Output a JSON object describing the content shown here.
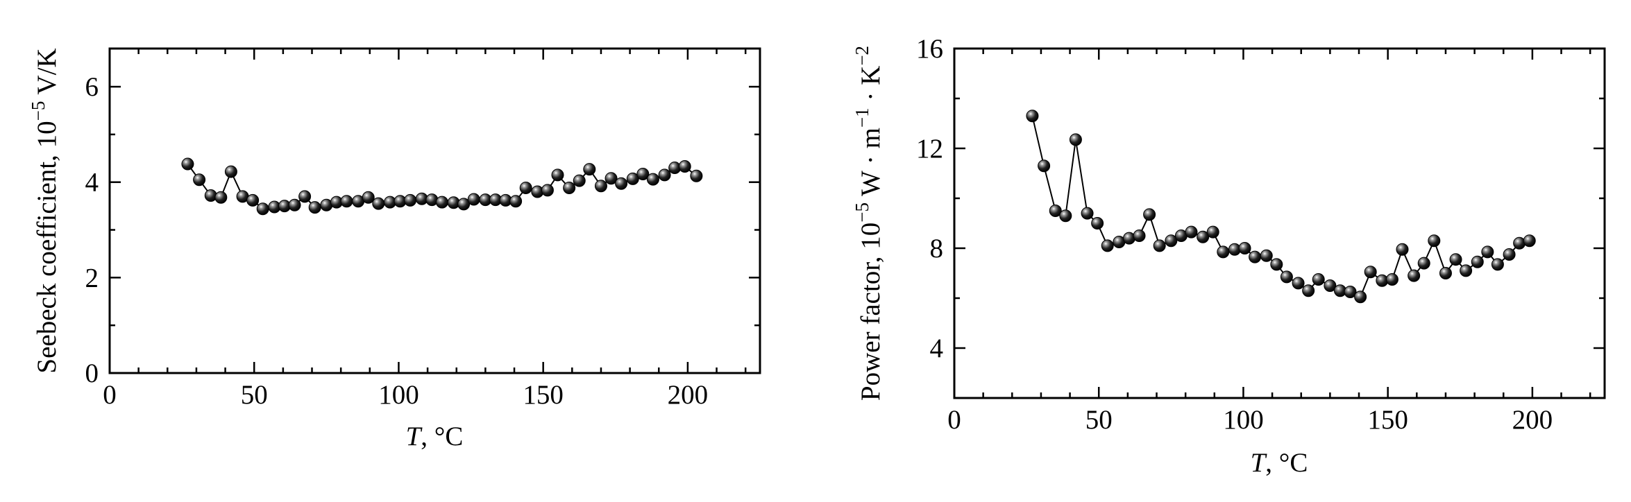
{
  "chart_data": [
    {
      "type": "scatter",
      "ylabel_prefix": "Seebeck coefficient, 10",
      "ylabel_exp": "−5",
      "ylabel_unit": " V/K",
      "xlabel_var": "T",
      "xlabel_unit": ", °C",
      "xlim": [
        0,
        225
      ],
      "ylim": [
        0,
        6.8
      ],
      "xticks": [
        0,
        50,
        100,
        150,
        200
      ],
      "yticks": [
        0,
        2,
        4,
        6
      ],
      "xtick_labels": [
        "0",
        "50",
        "100",
        "150",
        "200"
      ],
      "ytick_labels": [
        "0",
        "2",
        "4",
        "6"
      ],
      "series": [
        {
          "x": [
            27,
            31,
            35,
            38.5,
            42,
            46,
            49.5,
            53,
            57,
            60.5,
            64,
            67.5,
            71,
            75,
            78.5,
            82,
            86,
            89.5,
            93,
            97,
            100.5,
            104,
            108,
            111.5,
            115,
            119,
            122.5,
            126,
            130,
            133.5,
            137,
            140.5,
            144,
            148,
            151.5,
            155,
            159,
            162.5,
            166,
            170,
            173.5,
            177,
            181,
            184.5,
            188,
            192,
            195.5,
            199,
            203
          ],
          "y": [
            4.38,
            4.05,
            3.72,
            3.68,
            4.22,
            3.7,
            3.62,
            3.44,
            3.48,
            3.5,
            3.52,
            3.7,
            3.47,
            3.52,
            3.58,
            3.6,
            3.6,
            3.68,
            3.55,
            3.58,
            3.6,
            3.62,
            3.65,
            3.63,
            3.58,
            3.57,
            3.54,
            3.64,
            3.63,
            3.63,
            3.62,
            3.6,
            3.88,
            3.8,
            3.83,
            4.15,
            3.88,
            4.03,
            4.27,
            3.92,
            4.08,
            3.97,
            4.07,
            4.17,
            4.06,
            4.15,
            4.3,
            4.33,
            4.13
          ]
        }
      ]
    },
    {
      "type": "line",
      "ylabel_prefix": "Power factor, 10",
      "ylabel_exp": "−5",
      "ylabel_mid": " W · m",
      "ylabel_exp2": "−1",
      "ylabel_mid2": " · K",
      "ylabel_exp3": "−2",
      "xlabel_var": "T",
      "xlabel_unit": ", °C",
      "xlim": [
        0,
        225
      ],
      "ylim": [
        2,
        16
      ],
      "xticks": [
        0,
        50,
        100,
        150,
        200
      ],
      "yticks": [
        4,
        8,
        12,
        16
      ],
      "xtick_labels": [
        "0",
        "50",
        "100",
        "150",
        "200"
      ],
      "ytick_labels": [
        "4",
        "8",
        "12",
        "16"
      ],
      "series": [
        {
          "x": [
            27,
            31,
            35,
            38.5,
            42,
            46,
            49.5,
            53,
            57,
            60.5,
            64,
            67.5,
            71,
            75,
            78.5,
            82,
            86,
            89.5,
            93,
            97,
            100.5,
            104,
            108,
            111.5,
            115,
            119,
            122.5,
            126,
            130,
            133.5,
            137,
            140.5,
            144,
            148,
            151.5,
            155,
            159,
            162.5,
            166,
            170,
            173.5,
            177,
            181,
            184.5,
            188,
            192,
            195.5,
            199
          ],
          "y": [
            13.3,
            11.3,
            9.5,
            9.3,
            12.35,
            9.4,
            9.0,
            8.1,
            8.25,
            8.4,
            8.5,
            9.35,
            8.1,
            8.3,
            8.5,
            8.65,
            8.45,
            8.65,
            7.85,
            7.95,
            8.0,
            7.65,
            7.7,
            7.35,
            6.85,
            6.6,
            6.3,
            6.75,
            6.5,
            6.3,
            6.25,
            6.05,
            7.05,
            6.7,
            6.75,
            7.95,
            6.9,
            7.4,
            8.3,
            7.0,
            7.55,
            7.1,
            7.45,
            7.85,
            7.35,
            7.75,
            8.2,
            8.3
          ]
        }
      ]
    }
  ]
}
